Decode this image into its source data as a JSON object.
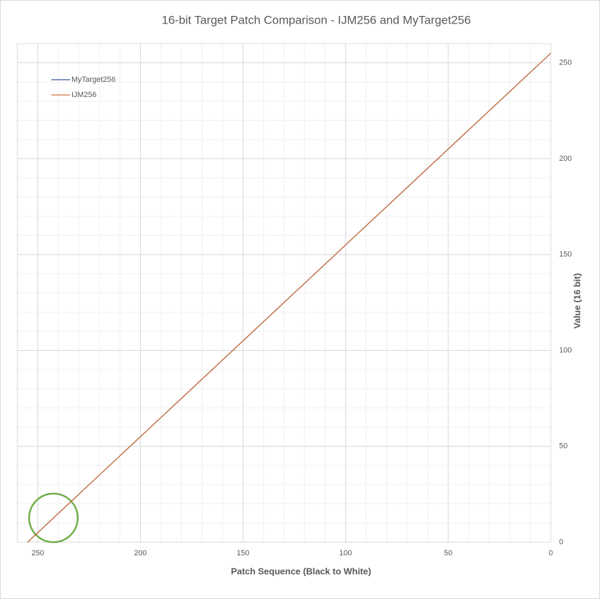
{
  "chart_data": {
    "type": "line",
    "title": "16-bit Target Patch Comparison - IJM256 and MyTarget256",
    "x_label": "Patch Sequence (Black to White)",
    "y_label": "Value (16 bit)",
    "x": [
      0,
      15,
      30,
      45,
      60,
      75,
      90,
      105,
      120,
      135,
      150,
      165,
      180,
      195,
      210,
      225,
      240,
      255
    ],
    "series": [
      {
        "name": "MyTarget256",
        "color": "#2f5597",
        "values": [
          255,
          240,
          225,
          210,
          195,
          180,
          165,
          150,
          135,
          120,
          105,
          90,
          75,
          60,
          45,
          30,
          15,
          0
        ]
      },
      {
        "name": "IJM256",
        "color": "#d0703a",
        "values": [
          255,
          240,
          225,
          210,
          195,
          180,
          165,
          150,
          135,
          120,
          105,
          90,
          75,
          60,
          45,
          30,
          15,
          0
        ]
      }
    ],
    "xlim": [
      260,
      0
    ],
    "xticks": [
      250,
      200,
      150,
      100,
      50,
      0
    ],
    "ylim": [
      0,
      260
    ],
    "yticks": [
      0,
      50,
      100,
      150,
      200,
      250
    ],
    "grid": true,
    "minor_grid": true,
    "legend_position": "upper-left"
  }
}
